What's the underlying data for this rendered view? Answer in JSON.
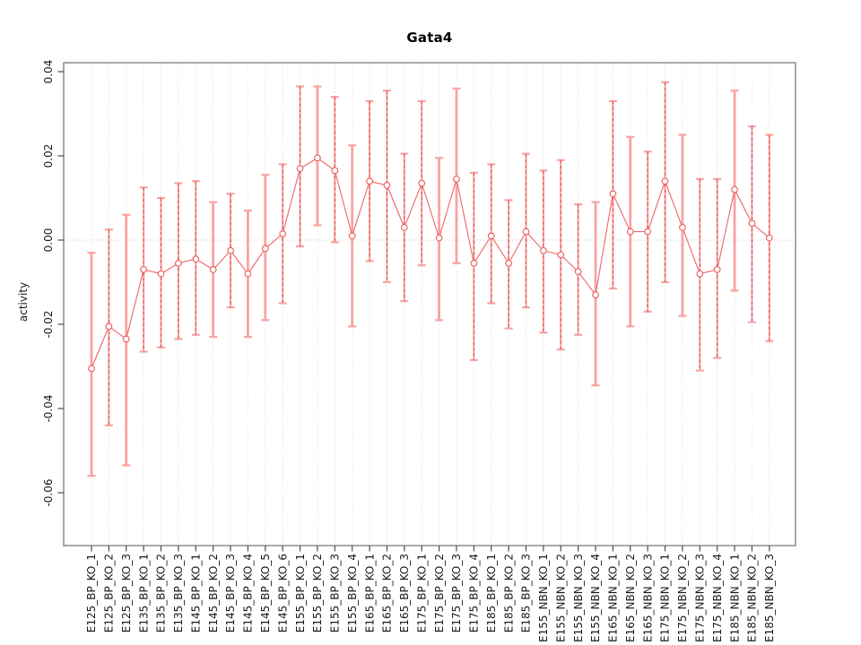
{
  "page": {
    "background": "#ffffff"
  },
  "chart_data": {
    "type": "line",
    "subtype": "points-with-error-bars",
    "title": "Gata4",
    "xlabel": "",
    "ylabel": "activity",
    "legend": "none",
    "grid": "vertical dotted gridline at each category; dotted horizontal line at y=0",
    "ylim": [
      -0.0726,
      0.0422
    ],
    "yticks": [
      0.04,
      0.02,
      0,
      -0.02,
      -0.04,
      -0.06
    ],
    "ytick_labels": [
      "0.04",
      "0.02",
      "0.00",
      "-0.02",
      "-0.04",
      "-0.06"
    ],
    "categories": [
      "E125_BP_KO_1",
      "E125_BP_KO_2",
      "E125_BP_KO_3",
      "E135_BP_KO_1",
      "E135_BP_KO_2",
      "E135_BP_KO_3",
      "E145_BP_KO_1",
      "E145_BP_KO_2",
      "E145_BP_KO_3",
      "E145_BP_KO_4",
      "E145_BP_KO_5",
      "E145_BP_KO_6",
      "E155_BP_KO_1",
      "E155_BP_KO_2",
      "E155_BP_KO_3",
      "E155_BP_KO_4",
      "E165_BP_KO_1",
      "E165_BP_KO_2",
      "E165_BP_KO_3",
      "E175_BP_KO_1",
      "E175_BP_KO_2",
      "E175_BP_KO_3",
      "E175_BP_KO_4",
      "E185_BP_KO_1",
      "E185_BP_KO_2",
      "E185_BP_KO_3",
      "E155_NBN_KO_1",
      "E155_NBN_KO_2",
      "E155_NBN_KO_3",
      "E155_NBN_KO_4",
      "E165_NBN_KO_1",
      "E165_NBN_KO_2",
      "E165_NBN_KO_3",
      "E175_NBN_KO_1",
      "E175_NBN_KO_2",
      "E175_NBN_KO_3",
      "E175_NBN_KO_4",
      "E185_NBN_KO_1",
      "E185_NBN_KO_2",
      "E185_NBN_KO_3"
    ],
    "series": [
      {
        "name": "activity",
        "marker": "open-circle",
        "values": [
          -0.0305,
          -0.0205,
          -0.0235,
          -0.007,
          -0.008,
          -0.0055,
          -0.0045,
          -0.007,
          -0.0025,
          -0.008,
          -0.002,
          0.0015,
          0.017,
          0.0195,
          0.0165,
          0.001,
          0.014,
          0.013,
          0.003,
          0.0135,
          0.0005,
          0.0145,
          -0.0055,
          0.001,
          -0.0055,
          0.002,
          -0.0025,
          -0.0035,
          -0.0075,
          -0.013,
          0.011,
          0.002,
          0.002,
          0.014,
          0.003,
          -0.008,
          -0.007,
          0.012,
          0.004,
          0.0005
        ],
        "error_upper": [
          -0.003,
          0.0025,
          0.006,
          0.0125,
          0.01,
          0.0135,
          0.014,
          0.009,
          0.011,
          0.007,
          0.0155,
          0.018,
          0.0365,
          0.0365,
          0.034,
          0.0225,
          0.033,
          0.0355,
          0.0205,
          0.033,
          0.0195,
          0.036,
          0.016,
          0.018,
          0.0095,
          0.0205,
          0.0165,
          0.019,
          0.0085,
          0.009,
          0.033,
          0.0245,
          0.021,
          0.0375,
          0.025,
          0.0145,
          0.0145,
          0.0355,
          0.027,
          0.025
        ],
        "error_lower": [
          -0.056,
          -0.044,
          -0.0535,
          -0.0265,
          -0.0255,
          -0.0235,
          -0.0225,
          -0.023,
          -0.016,
          -0.023,
          -0.019,
          -0.015,
          -0.0015,
          0.0035,
          -0.0005,
          -0.0205,
          -0.005,
          -0.01,
          -0.0145,
          -0.006,
          -0.019,
          -0.0055,
          -0.0285,
          -0.015,
          -0.021,
          -0.016,
          -0.022,
          -0.026,
          -0.0225,
          -0.0345,
          -0.0115,
          -0.0205,
          -0.017,
          -0.01,
          -0.018,
          -0.031,
          -0.028,
          -0.012,
          -0.0195,
          -0.024
        ],
        "dashed_error_bar": [
          false,
          true,
          false,
          true,
          true,
          true,
          true,
          false,
          true,
          false,
          false,
          true,
          true,
          false,
          true,
          false,
          true,
          true,
          true,
          true,
          false,
          false,
          true,
          true,
          true,
          true,
          true,
          true,
          true,
          false,
          true,
          false,
          true,
          true,
          false,
          true,
          true,
          false,
          true,
          true
        ]
      }
    ],
    "colors": {
      "error_bar": "#F7A3A3",
      "error_bar_dash": "#E25050",
      "line": "#F06A6A",
      "marker": "#EE6060",
      "marker_fill": "#FFFFFF",
      "grid": "#E4E4E4",
      "zero_line": "#D4D4D4",
      "box": "#828282",
      "tick": "#4D4D4D",
      "text": "#1A1A1A",
      "title": "#000000"
    }
  }
}
